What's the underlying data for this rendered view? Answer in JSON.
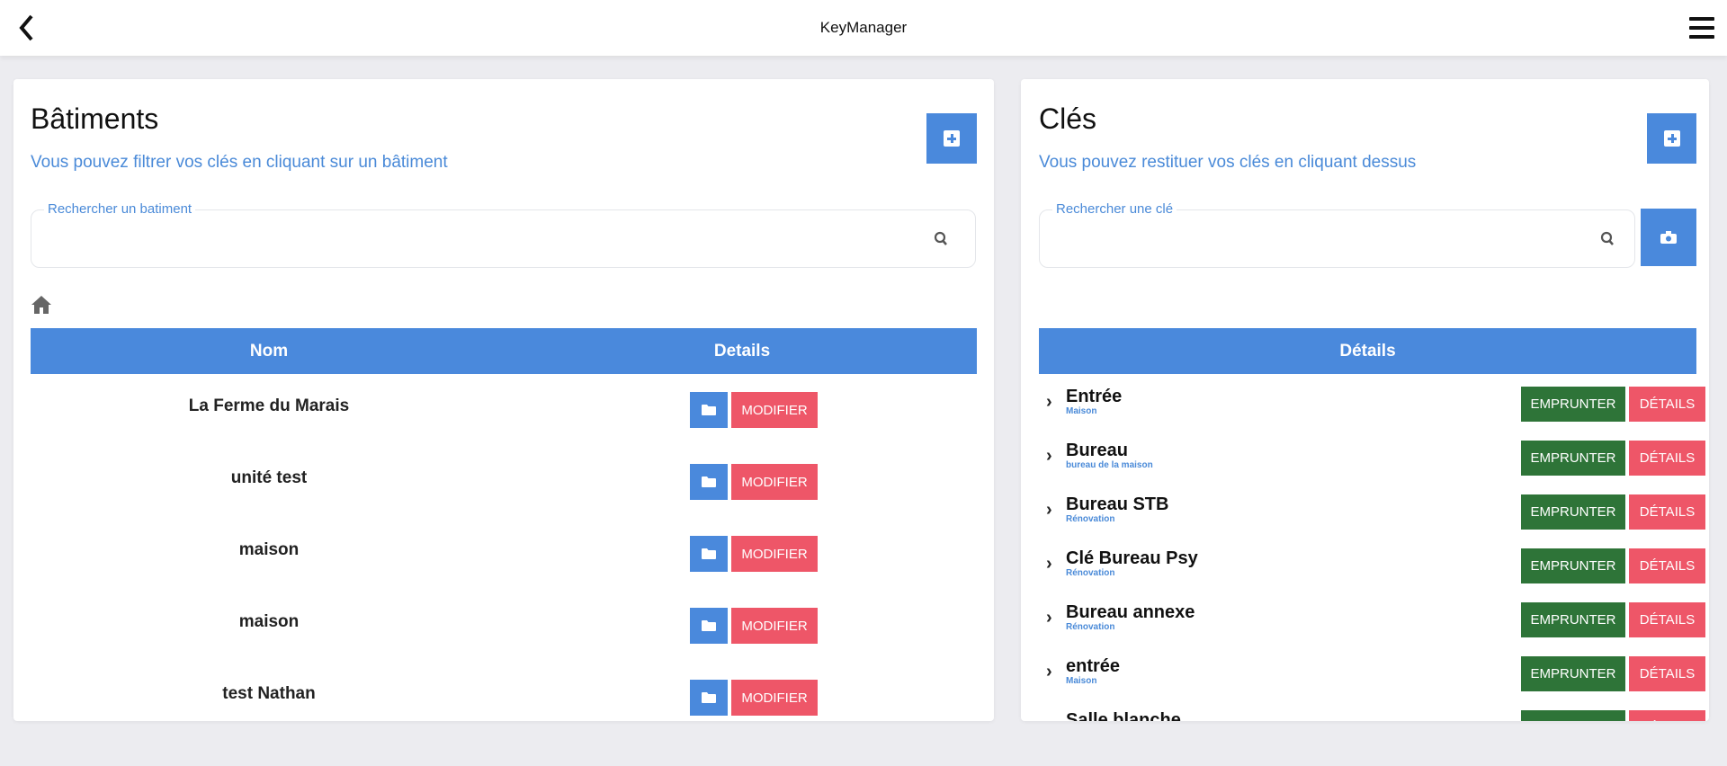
{
  "header": {
    "title": "KeyManager"
  },
  "buildings": {
    "title": "Bâtiments",
    "subtitle": "Vous pouvez filtrer vos clés en cliquant sur un bâtiment",
    "search_label": "Rechercher un batiment",
    "search_value": "",
    "columns": [
      "Nom",
      "Details"
    ],
    "modify_label": "MODIFIER",
    "rows": [
      {
        "name": "La Ferme du Marais"
      },
      {
        "name": "unité test"
      },
      {
        "name": "maison"
      },
      {
        "name": "maison"
      },
      {
        "name": "test Nathan"
      }
    ]
  },
  "keys": {
    "title": "Clés",
    "subtitle": "Vous pouvez restituer vos clés en cliquant dessus",
    "search_label": "Rechercher une clé",
    "search_value": "",
    "column": "Détails",
    "borrow_label": "EMPRUNTER",
    "details_label": "DÉTAILS",
    "rows": [
      {
        "name": "Entrée",
        "building": "Maison"
      },
      {
        "name": "Bureau",
        "building": "bureau de la maison"
      },
      {
        "name": "Bureau STB",
        "building": "Rénovation"
      },
      {
        "name": "Clé Bureau Psy",
        "building": "Rénovation"
      },
      {
        "name": "Bureau annexe",
        "building": "Rénovation"
      },
      {
        "name": "entrée",
        "building": "Maison"
      },
      {
        "name": "Salle blanche",
        "building": ""
      }
    ]
  },
  "colors": {
    "primary": "#4a89dc",
    "danger": "#ee5668",
    "success": "#2e7438"
  }
}
